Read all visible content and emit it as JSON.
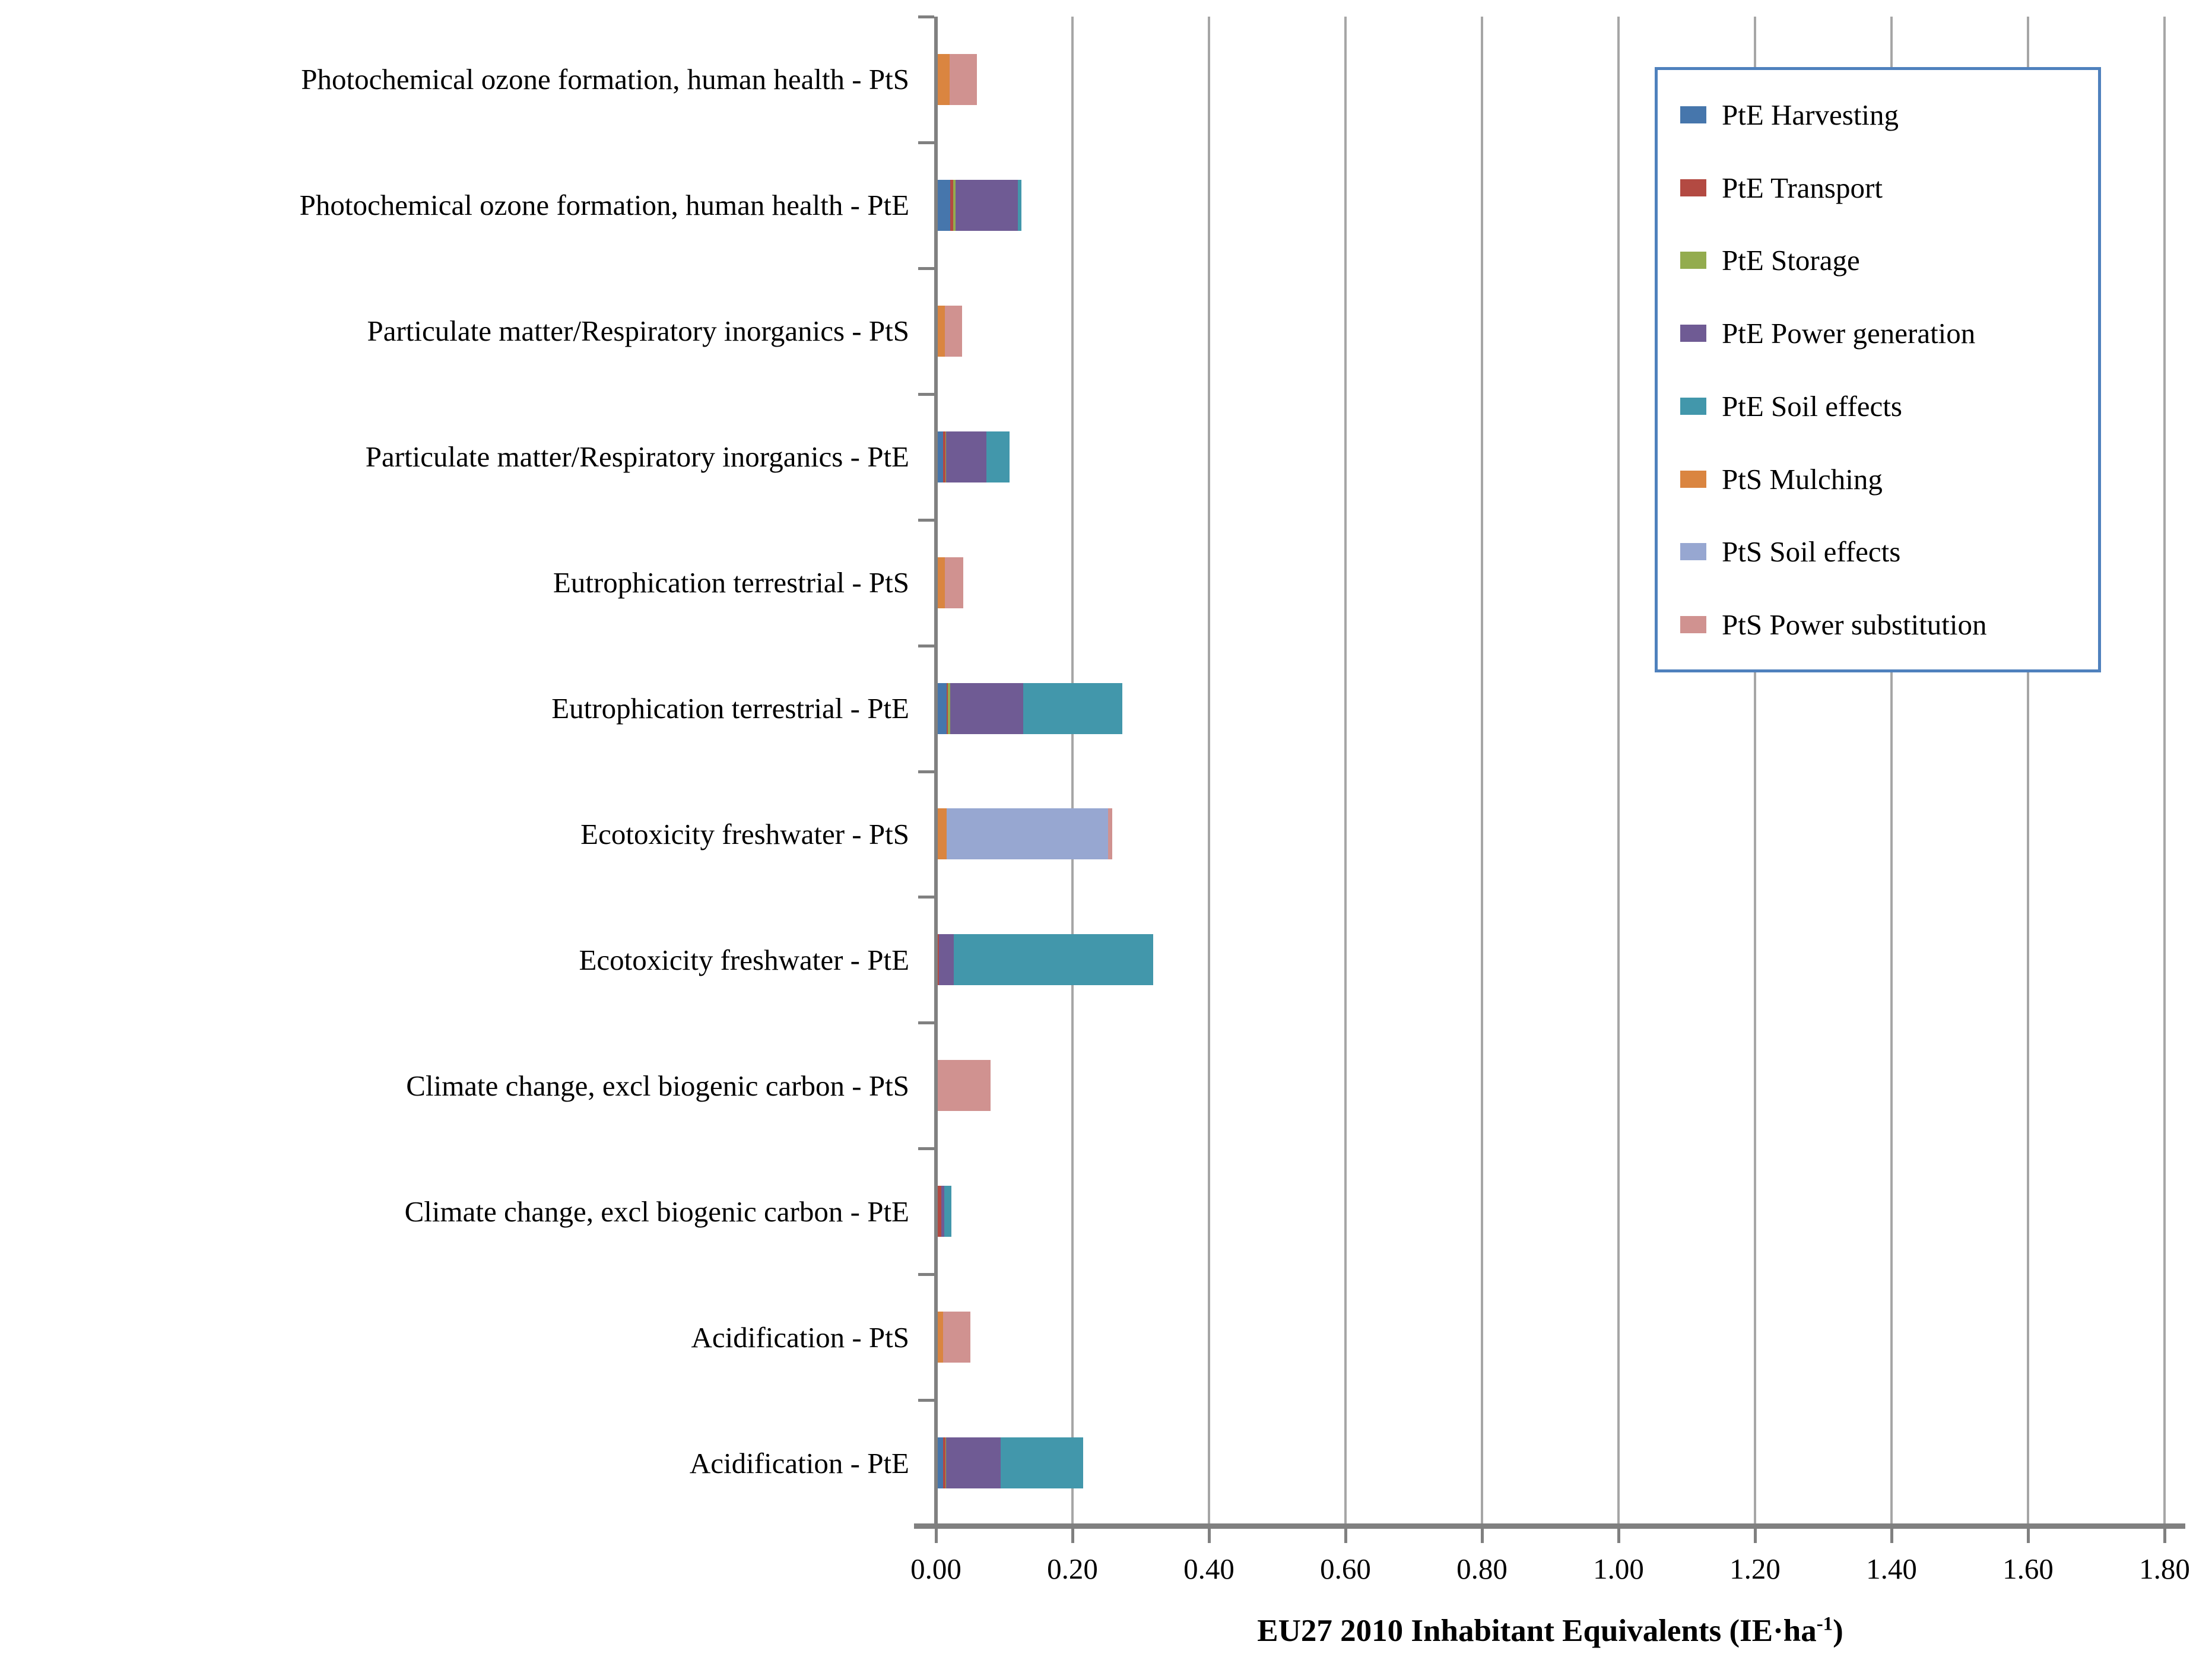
{
  "chart_data": {
    "type": "bar",
    "orientation": "horizontal",
    "stacked": true,
    "xlabel": "EU27 2010 Inhabitant Equivalents (IE·ha⁻¹)",
    "xlabel_main": "EU27 2010 Inhabitant Equivalents (IE·ha",
    "xlabel_sup": "-1",
    "xlabel_end": ")",
    "xlim": [
      0,
      1.8
    ],
    "x_ticks": [
      "0.00",
      "0.20",
      "0.40",
      "0.60",
      "0.80",
      "1.00",
      "1.20",
      "1.40",
      "1.60",
      "1.80"
    ],
    "grid": "vertical",
    "legend_position": "top-right",
    "categories": [
      "Photochemical ozone formation, human health - PtS",
      "Photochemical ozone formation, human health - PtE",
      "Particulate matter/Respiratory inorganics - PtS",
      "Particulate matter/Respiratory inorganics - PtE",
      "Eutrophication terrestrial - PtS",
      "Eutrophication terrestrial - PtE",
      "Ecotoxicity freshwater - PtS",
      "Ecotoxicity freshwater - PtE",
      "Climate change, excl biogenic carbon - PtS",
      "Climate change, excl biogenic carbon - PtE",
      "Acidification - PtS",
      "Acidification - PtE"
    ],
    "series": [
      {
        "name": "PtE Harvesting",
        "color": "#4676AC",
        "values": [
          0,
          0.021,
          0,
          0.01,
          0,
          0.016,
          0,
          0.003,
          0,
          0.003,
          0,
          0.01
        ]
      },
      {
        "name": "PtE Transport",
        "color": "#B34A42",
        "values": [
          0,
          0.004,
          0,
          0.004,
          0,
          0.001,
          0,
          0.001,
          0,
          0.005,
          0,
          0.004
        ]
      },
      {
        "name": "PtE Storage",
        "color": "#93AC4E",
        "values": [
          0,
          0.004,
          0,
          0.001,
          0,
          0.004,
          0,
          0.0,
          0,
          0.0,
          0,
          0.001
        ]
      },
      {
        "name": "PtE Power generation",
        "color": "#6F5B94",
        "values": [
          0,
          0.091,
          0,
          0.059,
          0,
          0.107,
          0,
          0.022,
          0,
          0.004,
          0,
          0.08
        ]
      },
      {
        "name": "PtE Soil effects",
        "color": "#4297AB",
        "values": [
          0,
          0.005,
          0,
          0.034,
          0,
          0.145,
          0,
          0.292,
          0,
          0.011,
          0,
          0.121
        ]
      },
      {
        "name": "PtS Mulching",
        "color": "#DA8540",
        "values": [
          0.02,
          0,
          0.013,
          0,
          0.013,
          0,
          0.016,
          0,
          0.003,
          0,
          0.01,
          0
        ]
      },
      {
        "name": "PtS Soil effects",
        "color": "#97A7D1",
        "values": [
          0,
          0,
          0,
          0,
          0,
          0,
          0.236,
          0,
          0,
          0,
          0,
          0
        ]
      },
      {
        "name": "PtS Power substitution",
        "color": "#D09290",
        "values": [
          0.04,
          0,
          0.025,
          0,
          0.027,
          0,
          0.006,
          0,
          0.077,
          0,
          0.04,
          0
        ]
      }
    ]
  },
  "colors": {
    "axis": "#808080",
    "gridline": "#A6A6A6",
    "legend_border": "#4F81BD",
    "background": "#FFFFFF"
  }
}
